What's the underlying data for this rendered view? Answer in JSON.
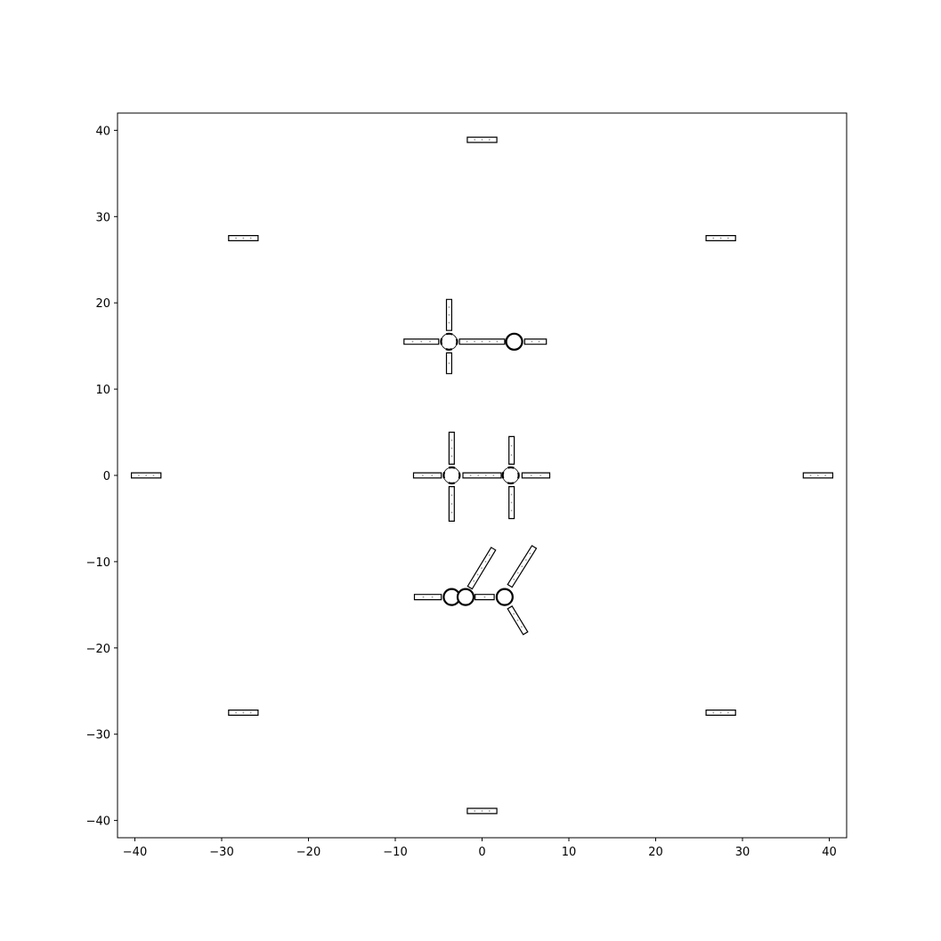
{
  "chart_data": {
    "type": "scatter",
    "title": "",
    "xlabel": "",
    "ylabel": "",
    "xlim": [
      -42,
      42
    ],
    "ylim": [
      -42,
      42
    ],
    "x_ticks": [
      -40,
      -30,
      -20,
      -10,
      0,
      10,
      20,
      30,
      40
    ],
    "y_ticks": [
      -40,
      -30,
      -20,
      -10,
      0,
      10,
      20,
      30,
      40
    ],
    "x_tick_labels": [
      "−40",
      "−30",
      "−20",
      "−10",
      "0",
      "10",
      "20",
      "30",
      "40"
    ],
    "y_tick_labels": [
      "−40",
      "−30",
      "−20",
      "−10",
      "0",
      "10",
      "20",
      "30",
      "40"
    ],
    "grid": false,
    "segment_half_width": 0.3,
    "segments": [
      {
        "name": "marker-top",
        "x1": -1.7,
        "y1": 38.9,
        "x2": 1.7,
        "y2": 38.9
      },
      {
        "name": "marker-bottom",
        "x1": -1.7,
        "y1": -38.9,
        "x2": 1.7,
        "y2": -38.9
      },
      {
        "name": "marker-left",
        "x1": -40.4,
        "y1": 0,
        "x2": -37.0,
        "y2": 0
      },
      {
        "name": "marker-right",
        "x1": 37.0,
        "y1": 0,
        "x2": 40.4,
        "y2": 0
      },
      {
        "name": "marker-top-left",
        "x1": -29.2,
        "y1": 27.5,
        "x2": -25.8,
        "y2": 27.5
      },
      {
        "name": "marker-top-right",
        "x1": 25.8,
        "y1": 27.5,
        "x2": 29.2,
        "y2": 27.5
      },
      {
        "name": "marker-bottom-left",
        "x1": -29.2,
        "y1": -27.5,
        "x2": -25.8,
        "y2": -27.5
      },
      {
        "name": "marker-bottom-right",
        "x1": 25.8,
        "y1": -27.5,
        "x2": 29.2,
        "y2": -27.5
      },
      {
        "name": "upper-left-arm",
        "x1": -9.0,
        "y1": 15.5,
        "x2": -5.0,
        "y2": 15.5
      },
      {
        "name": "upper-up-arm",
        "x1": -3.8,
        "y1": 16.8,
        "x2": -3.8,
        "y2": 20.4
      },
      {
        "name": "upper-down-arm",
        "x1": -3.8,
        "y1": 14.2,
        "x2": -3.8,
        "y2": 11.8
      },
      {
        "name": "upper-link",
        "x1": -2.6,
        "y1": 15.5,
        "x2": 2.6,
        "y2": 15.5
      },
      {
        "name": "upper-right-arm",
        "x1": 4.9,
        "y1": 15.5,
        "x2": 7.4,
        "y2": 15.5
      },
      {
        "name": "middle-left-arm",
        "x1": -7.9,
        "y1": 0,
        "x2": -4.7,
        "y2": 0
      },
      {
        "name": "middle-left-up",
        "x1": -3.5,
        "y1": 1.3,
        "x2": -3.5,
        "y2": 5.0
      },
      {
        "name": "middle-left-down",
        "x1": -3.5,
        "y1": -1.3,
        "x2": -3.5,
        "y2": -5.3
      },
      {
        "name": "middle-link",
        "x1": -2.2,
        "y1": 0,
        "x2": 2.2,
        "y2": 0
      },
      {
        "name": "middle-right-up",
        "x1": 3.4,
        "y1": 1.3,
        "x2": 3.4,
        "y2": 4.5
      },
      {
        "name": "middle-right-down",
        "x1": 3.4,
        "y1": -1.3,
        "x2": 3.4,
        "y2": -5.0
      },
      {
        "name": "middle-right-arm",
        "x1": 4.6,
        "y1": 0,
        "x2": 7.8,
        "y2": 0
      },
      {
        "name": "lower-left-arm",
        "x1": -7.8,
        "y1": -14.1,
        "x2": -4.7,
        "y2": -14.1
      },
      {
        "name": "lower-link",
        "x1": -0.8,
        "y1": -14.1,
        "x2": 1.4,
        "y2": -14.1
      },
      {
        "name": "lower-diag-left",
        "x1": -1.4,
        "y1": -13.0,
        "x2": 1.3,
        "y2": -8.5
      },
      {
        "name": "lower-diag-right-up",
        "x1": 3.2,
        "y1": -12.8,
        "x2": 6.0,
        "y2": -8.3
      },
      {
        "name": "lower-diag-right-down",
        "x1": 3.2,
        "y1": -15.3,
        "x2": 5.0,
        "y2": -18.3
      }
    ],
    "joints": [
      {
        "name": "upper-left-joint",
        "x": -3.8,
        "y": 15.5,
        "gapped": true
      },
      {
        "name": "upper-right-joint",
        "x": 3.7,
        "y": 15.5,
        "gapped": false
      },
      {
        "name": "middle-left-joint",
        "x": -3.5,
        "y": 0,
        "gapped": true
      },
      {
        "name": "middle-right-joint",
        "x": 3.3,
        "y": 0,
        "gapped": true
      },
      {
        "name": "lower-left-joint",
        "x": -3.5,
        "y": -14.1,
        "gapped": false
      },
      {
        "name": "lower-mid-joint",
        "x": -1.9,
        "y": -14.1,
        "gapped": false
      },
      {
        "name": "lower-right-joint",
        "x": 2.6,
        "y": -14.1,
        "gapped": false
      }
    ]
  }
}
